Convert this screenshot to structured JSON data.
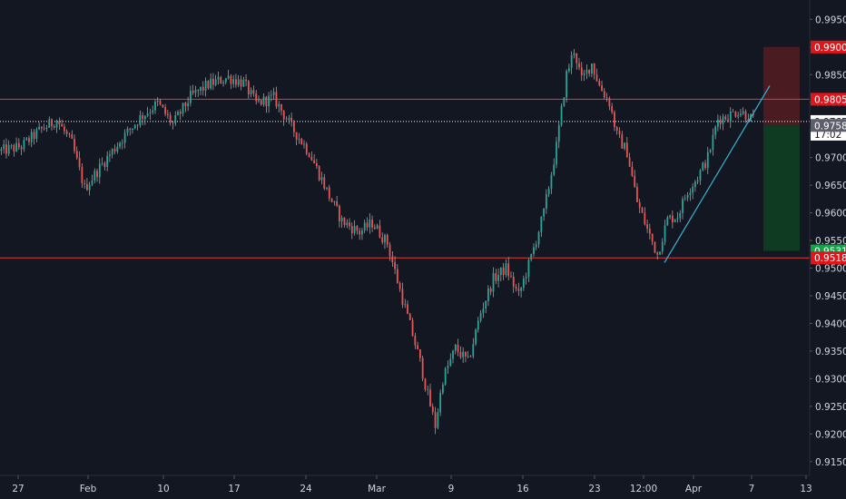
{
  "colors": {
    "background": "#131722",
    "up": "#26a69a",
    "down": "#ef5350",
    "wick": "#c9c9c9",
    "resistance": "#e53935",
    "trendline": "#3ab4d6",
    "stop_zone": "#4a1c22",
    "target_zone": "#0f3b22",
    "price_line": "#ffffff",
    "axis_text": "#d1d4dc"
  },
  "chart_data": {
    "type": "candlestick",
    "price_axis": {
      "ticks": [
        "0.99500",
        "0.99000",
        "0.98500",
        "0.98000",
        "0.97500",
        "0.97000",
        "0.96500",
        "0.96000",
        "0.95500",
        "0.95000",
        "0.94500",
        "0.94000",
        "0.93500",
        "0.93000",
        "0.92500",
        "0.92000",
        "0.91500"
      ],
      "ylim": [
        0.9125,
        0.9985
      ]
    },
    "time_axis": {
      "labels": [
        "27",
        "Feb",
        "10",
        "17",
        "24",
        "Mar",
        "9",
        "16",
        "23",
        "12:00",
        "Apr",
        "7",
        "13"
      ]
    },
    "horizontal_levels": [
      0.98055,
      0.95185
    ],
    "current_price": 0.97652,
    "countdown": "17:02",
    "position": {
      "entry": 0.97581,
      "stop": 0.99,
      "target": 0.95311
    },
    "price_tags": {
      "stop": "0.99000",
      "resistance": "0.98055",
      "current": "0.97652",
      "entry": "0.97581",
      "target": "0.95311",
      "support": "0.95185"
    },
    "trendline": [
      [
        0.951,
        0.983
      ]
    ],
    "anchors": [
      [
        0,
        0.9712
      ],
      [
        8,
        0.972
      ],
      [
        15,
        0.9748
      ],
      [
        22,
        0.9768
      ],
      [
        28,
        0.9725
      ],
      [
        33,
        0.9644
      ],
      [
        40,
        0.9688
      ],
      [
        48,
        0.9735
      ],
      [
        55,
        0.9772
      ],
      [
        62,
        0.9798
      ],
      [
        68,
        0.976
      ],
      [
        75,
        0.981
      ],
      [
        82,
        0.9832
      ],
      [
        90,
        0.9845
      ],
      [
        96,
        0.9835
      ],
      [
        101,
        0.9798
      ],
      [
        108,
        0.9808
      ],
      [
        115,
        0.9755
      ],
      [
        122,
        0.971
      ],
      [
        130,
        0.963
      ],
      [
        135,
        0.9585
      ],
      [
        142,
        0.9565
      ],
      [
        147,
        0.9582
      ],
      [
        153,
        0.9545
      ],
      [
        158,
        0.946
      ],
      [
        163,
        0.938
      ],
      [
        166,
        0.933
      ],
      [
        169,
        0.927
      ],
      [
        172,
        0.9215
      ],
      [
        175,
        0.93
      ],
      [
        180,
        0.9355
      ],
      [
        185,
        0.933
      ],
      [
        190,
        0.942
      ],
      [
        195,
        0.948
      ],
      [
        200,
        0.95
      ],
      [
        205,
        0.945
      ],
      [
        210,
        0.952
      ],
      [
        215,
        0.96
      ],
      [
        220,
        0.972
      ],
      [
        224,
        0.985
      ],
      [
        227,
        0.9895
      ],
      [
        230,
        0.984
      ],
      [
        234,
        0.987
      ],
      [
        237,
        0.983
      ],
      [
        241,
        0.98
      ],
      [
        244,
        0.974
      ],
      [
        248,
        0.971
      ],
      [
        252,
        0.962
      ],
      [
        256,
        0.957
      ],
      [
        260,
        0.9525
      ],
      [
        264,
        0.9588
      ],
      [
        268,
        0.9595
      ],
      [
        272,
        0.964
      ],
      [
        276,
        0.9665
      ],
      [
        280,
        0.97
      ],
      [
        284,
        0.977
      ],
      [
        288,
        0.9775
      ],
      [
        292,
        0.9785
      ],
      [
        295,
        0.9778
      ],
      [
        298,
        0.9768
      ]
    ]
  }
}
